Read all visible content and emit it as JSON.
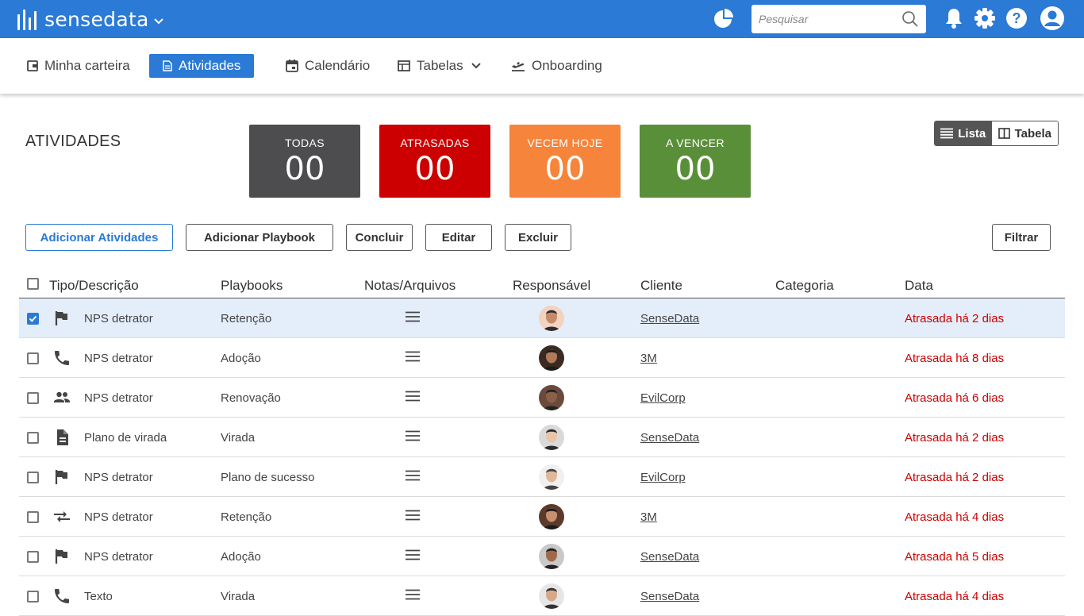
{
  "app": {
    "brand": "sensedata",
    "accent": "#2a7ad6"
  },
  "search": {
    "placeholder": "Pesquisar"
  },
  "nav": {
    "wallet": "Minha carteira",
    "activities": "Atividades",
    "calendar": "Calendário",
    "tables": "Tabelas",
    "onboarding": "Onboarding"
  },
  "page": {
    "title": "ATIVIDADES"
  },
  "stats": {
    "all": {
      "label": "TODAS",
      "value": "00",
      "color": "#4d4d4f"
    },
    "late": {
      "label": "ATRASADAS",
      "value": "00",
      "color": "#cc0000"
    },
    "today": {
      "label": "VECEM HOJE",
      "value": "00",
      "color": "#f6843a"
    },
    "upcoming": {
      "label": "A VENCER",
      "value": "00",
      "color": "#5a8f3a"
    }
  },
  "view": {
    "list": "Lista",
    "table": "Tabela",
    "selected": "Lista"
  },
  "actions": {
    "add_activities": "Adicionar Atividades",
    "add_playbook": "Adicionar Playbook",
    "complete": "Concluir",
    "edit": "Editar",
    "delete": "Excluir",
    "filter": "Filtrar"
  },
  "table": {
    "columns": {
      "type": "Tipo/Descrição",
      "playbooks": "Playbooks",
      "notes": "Notas/Arquivos",
      "owner": "Responsável",
      "client": "Cliente",
      "category": "Categoria",
      "date": "Data"
    },
    "rows": [
      {
        "checked": true,
        "icon": "flag-icon",
        "description": "NPS detrator",
        "playbook": "Retenção",
        "client": "SenseData",
        "category": "",
        "date": "Atrasada há 2 dias"
      },
      {
        "checked": false,
        "icon": "phone-icon",
        "description": "NPS detrator",
        "playbook": "Adoção",
        "client": "3M",
        "category": "",
        "date": "Atrasada há 8 dias"
      },
      {
        "checked": false,
        "icon": "people-icon",
        "description": "NPS detrator",
        "playbook": "Renovação",
        "client": "EvilCorp",
        "category": "",
        "date": "Atrasada há 6 dias"
      },
      {
        "checked": false,
        "icon": "document-icon",
        "description": "Plano de virada",
        "playbook": "Virada",
        "client": "SenseData",
        "category": "",
        "date": "Atrasada há 2 dias"
      },
      {
        "checked": false,
        "icon": "flag-icon",
        "description": "NPS detrator",
        "playbook": "Plano de sucesso",
        "client": "EvilCorp",
        "category": "",
        "date": "Atrasada há 2 dias"
      },
      {
        "checked": false,
        "icon": "swap-icon",
        "description": "NPS detrator",
        "playbook": "Retenção",
        "client": "3M",
        "category": "",
        "date": "Atrasada há 4 dias"
      },
      {
        "checked": false,
        "icon": "flag-icon",
        "description": "NPS detrator",
        "playbook": "Adoção",
        "client": "SenseData",
        "category": "",
        "date": "Atrasada há 5 dias"
      },
      {
        "checked": false,
        "icon": "phone-icon",
        "description": "Texto",
        "playbook": "Virada",
        "client": "SenseData",
        "category": "",
        "date": "Atrasada há 4 dias"
      }
    ]
  }
}
